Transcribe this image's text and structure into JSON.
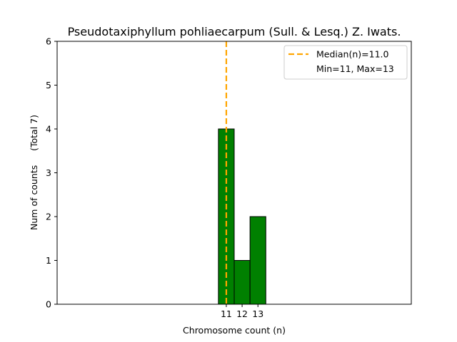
{
  "chart_data": {
    "type": "bar",
    "title": "Pseudotaxiphyllum pohliaecarpum (Sull. & Lesq.) Z. Iwats.",
    "xlabel": "Chromosome count (n)",
    "ylabel": "Num of counts     (Total 7)",
    "categories": [
      "11",
      "12",
      "13"
    ],
    "x": [
      11,
      12,
      13
    ],
    "values": [
      4,
      1,
      2
    ],
    "xlim": [
      0.3,
      22.7
    ],
    "ylim": [
      0,
      6
    ],
    "xticks": [
      11,
      12,
      13
    ],
    "yticks": [
      0,
      1,
      2,
      3,
      4,
      5,
      6
    ],
    "baseline_range": [
      10.6,
      16.6
    ],
    "median": 11.0,
    "legend": {
      "position": "top-right",
      "median_label": "Median(n)=11.0",
      "range_label": "Min=11, Max=13"
    },
    "colors": {
      "bar": "#008000",
      "bar_edge": "#000000",
      "median": "#FFA500"
    },
    "grid": false
  }
}
